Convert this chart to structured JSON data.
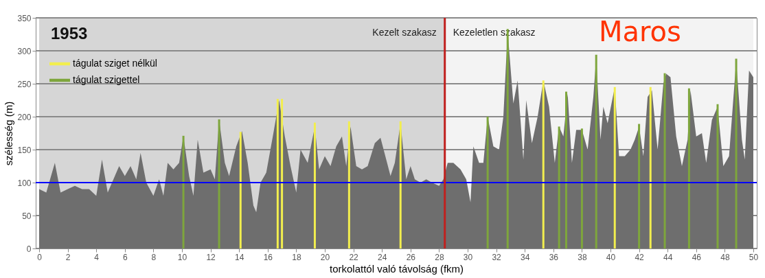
{
  "chart_data": {
    "type": "area",
    "title": "1953",
    "xlabel": "torkolattól való távolság (fkm)",
    "ylabel": "szélesség (m)",
    "annotations": [
      "Maros"
    ],
    "xlim": [
      0,
      50
    ],
    "xticks": [
      0,
      2,
      4,
      6,
      8,
      10,
      12,
      14,
      16,
      18,
      20,
      22,
      24,
      26,
      28,
      30,
      32,
      34,
      36,
      38,
      40,
      42,
      44,
      46,
      48,
      50
    ],
    "ylim": [
      0,
      350
    ],
    "yticks": [
      0,
      50,
      100,
      150,
      200,
      250,
      300,
      350
    ],
    "grid": "y",
    "legend": "top left",
    "ref_lines": [
      {
        "axis": "y",
        "value": 100,
        "color": "#0000ff"
      },
      {
        "axis": "x",
        "value": 28.4,
        "color": "#c0201e"
      }
    ],
    "bands": [
      {
        "axis": "x",
        "from": 0,
        "to": 28.4,
        "label": "Kezelt szakasz",
        "color": "#d6d6d6"
      },
      {
        "axis": "x",
        "from": 28.4,
        "to": 50,
        "label": "Kezeletlen szakasz",
        "color": "#f3f3f3"
      }
    ],
    "series": [
      {
        "color": "#6e6e6e",
        "x": [
          0,
          0.5,
          1.1,
          1.5,
          2.0,
          2.5,
          3.0,
          3.5,
          4.0,
          4.4,
          4.8,
          5.3,
          5.6,
          6.0,
          6.4,
          6.8,
          7.1,
          7.5,
          8.0,
          8.4,
          8.7,
          9.0,
          9.4,
          9.8,
          10.1,
          10.5,
          10.8,
          11.1,
          11.5,
          12.0,
          12.3,
          12.6,
          13.0,
          13.3,
          13.8,
          14.2,
          14.6,
          15.0,
          15.2,
          15.5,
          15.9,
          16.4,
          16.8,
          17.2,
          17.6,
          18.0,
          18.3,
          18.8,
          19.3,
          19.6,
          20.0,
          20.4,
          20.8,
          21.2,
          21.5,
          21.8,
          22.2,
          22.6,
          23.0,
          23.5,
          23.9,
          24.3,
          24.6,
          24.9,
          25.3,
          25.7,
          26.0,
          26.3,
          26.7,
          27.1,
          27.5,
          28.0,
          28.3,
          28.6,
          29.0,
          29.5,
          29.9,
          30.2,
          30.4,
          30.8,
          31.1,
          31.4,
          31.8,
          32.2,
          32.5,
          32.8,
          33.2,
          33.5,
          33.9,
          34.1,
          34.5,
          34.9,
          35.3,
          35.7,
          36.1,
          36.4,
          36.7,
          37.0,
          37.3,
          37.6,
          38.0,
          38.4,
          38.8,
          39.0,
          39.3,
          39.5,
          39.8,
          40.3,
          40.6,
          41.0,
          41.4,
          41.7,
          42.0,
          42.3,
          42.6,
          42.9,
          43.3,
          43.7,
          43.9,
          44.2,
          44.6,
          45.0,
          45.4,
          45.6,
          46.0,
          46.4,
          46.7,
          47.1,
          47.5,
          47.9,
          48.3,
          48.8,
          49.2,
          49.4,
          49.7,
          50.0
        ],
        "values": [
          90,
          85,
          130,
          85,
          90,
          95,
          90,
          90,
          80,
          135,
          85,
          110,
          125,
          110,
          125,
          105,
          145,
          100,
          80,
          105,
          80,
          130,
          120,
          130,
          170,
          110,
          80,
          165,
          115,
          120,
          105,
          195,
          130,
          110,
          155,
          178,
          130,
          65,
          55,
          100,
          115,
          175,
          225,
          170,
          125,
          85,
          150,
          130,
          185,
          120,
          140,
          125,
          155,
          170,
          125,
          185,
          125,
          120,
          125,
          160,
          168,
          135,
          110,
          130,
          190,
          105,
          125,
          105,
          100,
          105,
          100,
          95,
          105,
          130,
          130,
          120,
          105,
          70,
          155,
          130,
          130,
          200,
          155,
          150,
          200,
          330,
          220,
          255,
          135,
          225,
          160,
          200,
          255,
          215,
          130,
          185,
          170,
          235,
          130,
          180,
          180,
          150,
          230,
          290,
          165,
          215,
          190,
          245,
          140,
          140,
          150,
          165,
          185,
          140,
          230,
          240,
          150,
          250,
          265,
          260,
          170,
          125,
          165,
          240,
          170,
          175,
          130,
          195,
          215,
          125,
          140,
          285,
          165,
          135,
          270,
          260
        ]
      },
      {
        "type": "bar",
        "name": "tágulat sziget nélkül",
        "color": "#f2ee4e",
        "x": [
          14.1,
          16.7,
          17.0,
          19.3,
          21.7,
          25.3,
          35.3,
          40.3,
          42.8
        ],
        "values": [
          177,
          227,
          227,
          191,
          193,
          193,
          255,
          245,
          245
        ]
      },
      {
        "type": "bar",
        "name": "tágulat szigettel",
        "color": "#7ea63c",
        "x": [
          10.1,
          12.6,
          31.4,
          32.8,
          36.4,
          36.9,
          38.0,
          39.0,
          42.0,
          43.8,
          45.5,
          47.5,
          48.8
        ],
        "values": [
          171,
          196,
          200,
          333,
          185,
          238,
          182,
          294,
          189,
          266,
          243,
          219,
          288
        ]
      }
    ]
  }
}
